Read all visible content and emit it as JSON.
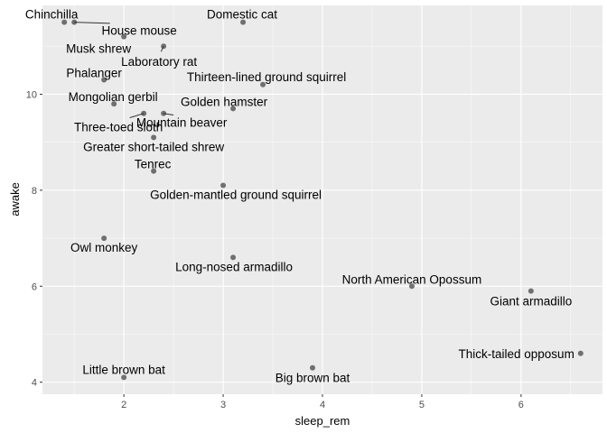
{
  "chart_data": {
    "type": "scatter",
    "title": "",
    "xlabel": "sleep_rem",
    "ylabel": "awake",
    "xlim": [
      1.18,
      6.82
    ],
    "ylim": [
      3.75,
      11.85
    ],
    "xticks": [
      2,
      3,
      4,
      5,
      6
    ],
    "yticks": [
      4,
      6,
      8,
      10
    ],
    "grid": true,
    "background": "#ebebeb",
    "point_color": "#595959",
    "points": [
      {
        "name": "Chinchilla",
        "x": 1.4,
        "y": 11.5
      },
      {
        "name": "House mouse",
        "x": 1.5,
        "y": 11.5
      },
      {
        "name": "Musk shrew",
        "x": 2.0,
        "y": 11.2
      },
      {
        "name": "Domestic cat",
        "x": 3.2,
        "y": 11.5
      },
      {
        "name": "Laboratory rat",
        "x": 2.4,
        "y": 11.0
      },
      {
        "name": "Phalanger",
        "x": 1.8,
        "y": 10.3
      },
      {
        "name": "Thirteen-lined ground squirrel",
        "x": 3.4,
        "y": 10.2
      },
      {
        "name": "Mongolian gerbil",
        "x": 1.9,
        "y": 9.8
      },
      {
        "name": "Golden hamster",
        "x": 3.1,
        "y": 9.7
      },
      {
        "name": "Three-toed sloth",
        "x": 2.2,
        "y": 9.6
      },
      {
        "name": "Mountain beaver",
        "x": 2.4,
        "y": 9.6
      },
      {
        "name": "Greater short-tailed shrew",
        "x": 2.3,
        "y": 9.1
      },
      {
        "name": "Tenrec",
        "x": 2.3,
        "y": 8.4
      },
      {
        "name": "Golden-mantled ground squirrel",
        "x": 3.0,
        "y": 8.1
      },
      {
        "name": "Owl monkey",
        "x": 1.8,
        "y": 7.0
      },
      {
        "name": "Long-nosed armadillo",
        "x": 3.1,
        "y": 6.6
      },
      {
        "name": "North American Opossum",
        "x": 4.9,
        "y": 6.0
      },
      {
        "name": "Giant armadillo",
        "x": 6.1,
        "y": 5.9
      },
      {
        "name": "Thick-tailed opposum",
        "x": 6.6,
        "y": 4.6
      },
      {
        "name": "Little brown bat",
        "x": 2.0,
        "y": 4.1
      },
      {
        "name": "Big brown bat",
        "x": 3.9,
        "y": 4.3
      }
    ]
  }
}
